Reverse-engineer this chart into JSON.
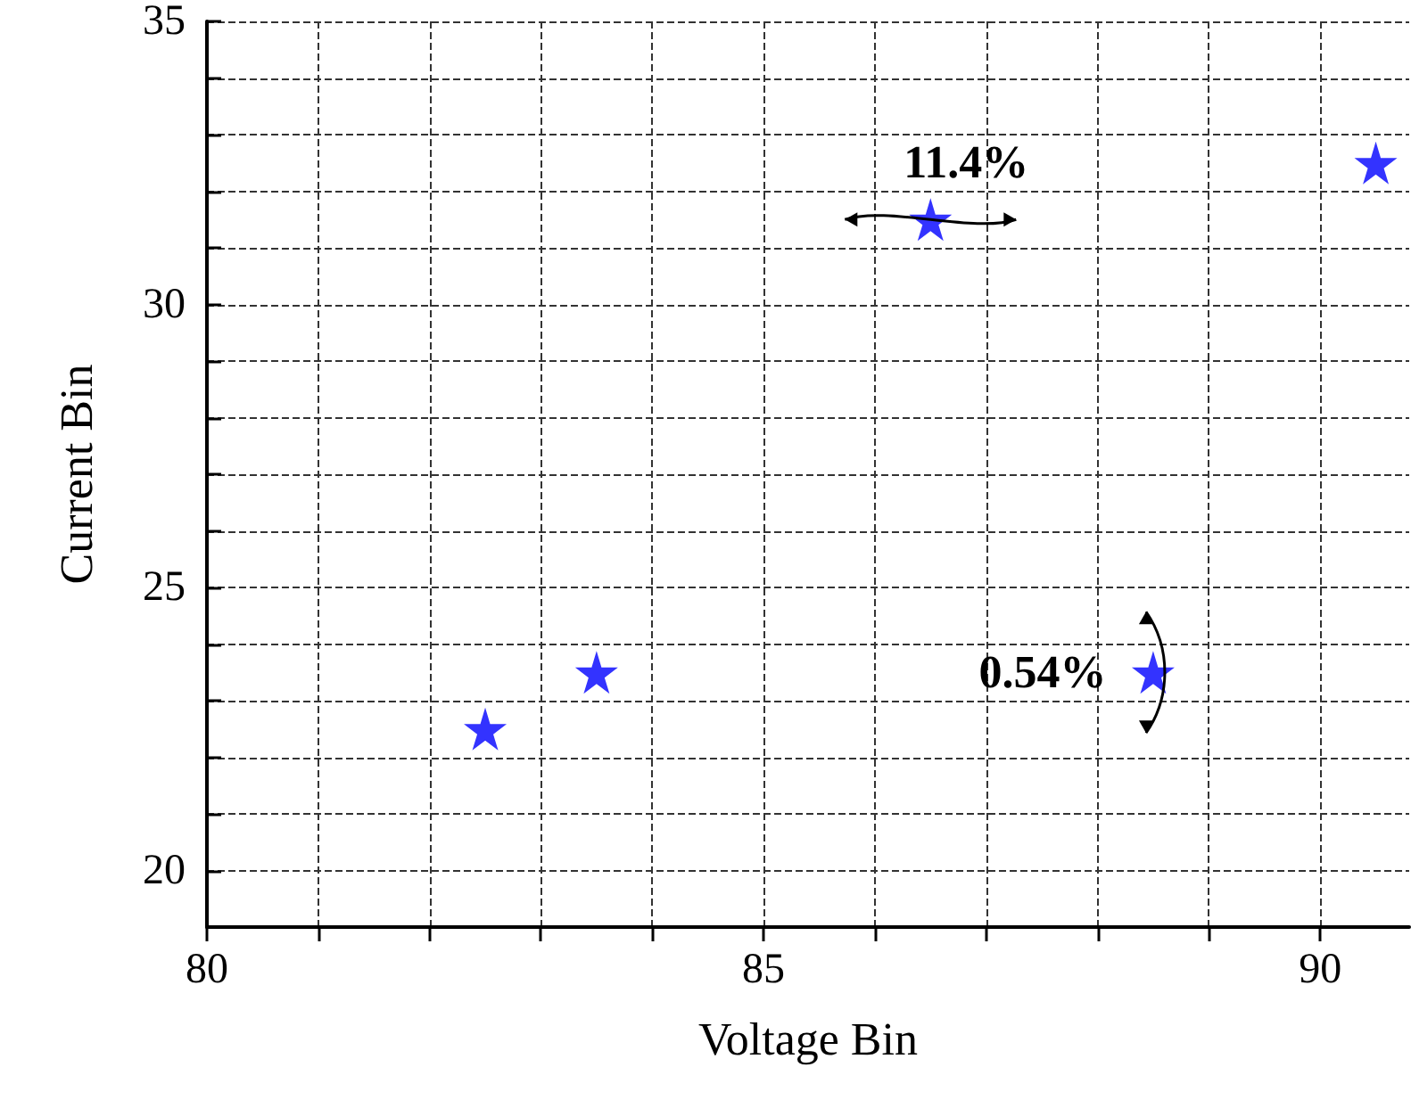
{
  "chart_data": {
    "type": "scatter",
    "xlabel": "Voltage Bin",
    "ylabel": "Current Bin",
    "x": [
      82.5,
      83.5,
      86.5,
      88.5,
      90.5
    ],
    "series": [
      {
        "color": "#0000ff",
        "values": [
          22.5,
          23.5,
          31.5,
          23.5,
          32.5
        ]
      }
    ],
    "marker": "star",
    "grid": true,
    "xlim": [
      80,
      90.8
    ],
    "xticks": [
      80,
      {
        "value": 81,
        "label": null
      },
      {
        "value": 82,
        "label": null
      },
      {
        "value": 83,
        "label": null
      },
      {
        "value": 84,
        "label": null
      },
      85,
      {
        "value": 86,
        "label": null
      },
      {
        "value": 87,
        "label": null
      },
      {
        "value": 88,
        "label": null
      },
      {
        "value": 89,
        "label": null
      },
      90
    ],
    "ylim": [
      19,
      35
    ],
    "yticks": [
      {
        "value": 19,
        "label": null
      },
      20,
      {
        "value": 21,
        "label": null
      },
      {
        "value": 22,
        "label": null
      },
      {
        "value": 23,
        "label": null
      },
      {
        "value": 24,
        "label": null
      },
      25,
      {
        "value": 26,
        "label": null
      },
      {
        "value": 27,
        "label": null
      },
      {
        "value": 28,
        "label": null
      },
      {
        "value": 29,
        "label": null
      },
      30,
      {
        "value": 31,
        "label": null
      },
      {
        "value": 32,
        "label": null
      },
      {
        "value": 33,
        "label": null
      },
      {
        "value": 34,
        "label": null
      },
      35
    ],
    "annotations": [
      {
        "text": "11.4%",
        "x": 86.5,
        "y": 31.5
      },
      {
        "text": "0.54%",
        "x": 88.5,
        "y": 23.5
      }
    ]
  }
}
